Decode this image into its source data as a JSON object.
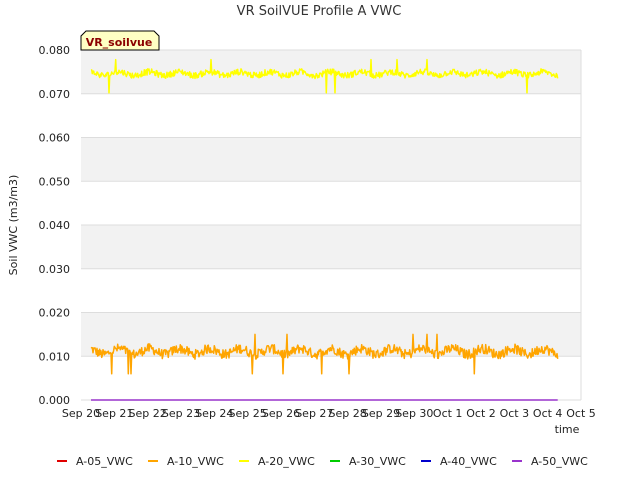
{
  "chart_data": {
    "type": "line",
    "title": "VR SoilVUE Profile A VWC",
    "xlabel": "time",
    "ylabel": "Soil VWC (m3/m3)",
    "ylim": [
      0.0,
      0.08
    ],
    "yticks": [
      "0.000",
      "0.010",
      "0.020",
      "0.030",
      "0.040",
      "0.050",
      "0.060",
      "0.070",
      "0.080"
    ],
    "xlim": [
      0,
      15
    ],
    "xticks": [
      "Sep 20",
      "Sep 21",
      "Sep 22",
      "Sep 23",
      "Sep 24",
      "Sep 25",
      "Sep 26",
      "Sep 27",
      "Sep 28",
      "Sep 29",
      "Sep 30",
      "Oct 1",
      "Oct 2",
      "Oct 3",
      "Oct 4",
      "Oct 5"
    ],
    "x_range_days": [
      0.3,
      14.3
    ],
    "badge": "VR_soilvue",
    "grid": true,
    "legend_position": "bottom",
    "series": [
      {
        "name": "A-05_VWC",
        "color": "#e00000",
        "visible": false
      },
      {
        "name": "A-10_VWC",
        "color": "#ffa500",
        "base": 0.0111,
        "noise": 0.0011,
        "min": 0.006,
        "max": 0.015
      },
      {
        "name": "A-20_VWC",
        "color": "#ffff00",
        "base": 0.0746,
        "noise": 0.0007,
        "min": 0.0702,
        "max": 0.0778
      },
      {
        "name": "A-30_VWC",
        "color": "#00cc00",
        "visible": false
      },
      {
        "name": "A-40_VWC",
        "color": "#0000cc",
        "visible": false
      },
      {
        "name": "A-50_VWC",
        "color": "#9933cc",
        "constant": 0.0
      }
    ]
  }
}
